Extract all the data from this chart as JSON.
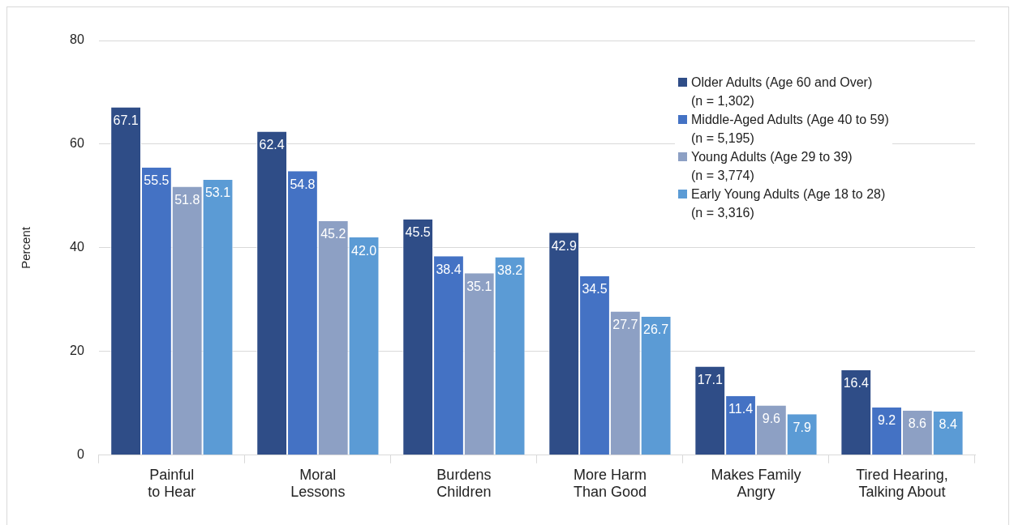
{
  "chart_data": {
    "type": "bar",
    "ylabel": "Percent",
    "categories": [
      "Painful\nto Hear",
      "Moral\nLessons",
      "Burdens\nChildren",
      "More Harm\nThan Good",
      "Makes Family\nAngry",
      "Tired Hearing,\nTalking About"
    ],
    "series": [
      {
        "name": "Older Adults (Age 60 and Over)\n(n = 1,302)",
        "color": "#2f4d87",
        "values": [
          67.1,
          62.4,
          45.5,
          42.9,
          17.1,
          16.4
        ],
        "value_labels": [
          "67.1",
          "62.4",
          "45.5",
          "42.9",
          "17.1",
          "16.4"
        ]
      },
      {
        "name": "Middle-Aged Adults (Age 40 to 59)\n(n = 5,195)",
        "color": "#4472c4",
        "values": [
          55.5,
          54.8,
          38.4,
          34.5,
          11.4,
          9.2
        ],
        "value_labels": [
          "55.5",
          "54.8",
          "38.4",
          "34.5",
          "11.4",
          "9.2"
        ]
      },
      {
        "name": "Young Adults (Age 29 to 39)\n(n = 3,774)",
        "color": "#8da0c4",
        "values": [
          51.8,
          45.2,
          35.1,
          27.7,
          9.6,
          8.6
        ],
        "value_labels": [
          "51.8",
          "45.2",
          "35.1",
          "27.7",
          "9.6",
          "8.6"
        ]
      },
      {
        "name": "Early Young Adults (Age 18 to 28)\n(n = 3,316)",
        "color": "#5b9bd5",
        "values": [
          53.1,
          42.0,
          38.2,
          26.7,
          7.9,
          8.4
        ],
        "value_labels": [
          "53.1",
          "42.0",
          "38.2",
          "26.7",
          "7.9",
          "8.4"
        ]
      }
    ],
    "ylim": [
      0,
      80
    ],
    "yticks": [
      0,
      20,
      40,
      60,
      80
    ],
    "grid": "y",
    "legend": "top right"
  }
}
